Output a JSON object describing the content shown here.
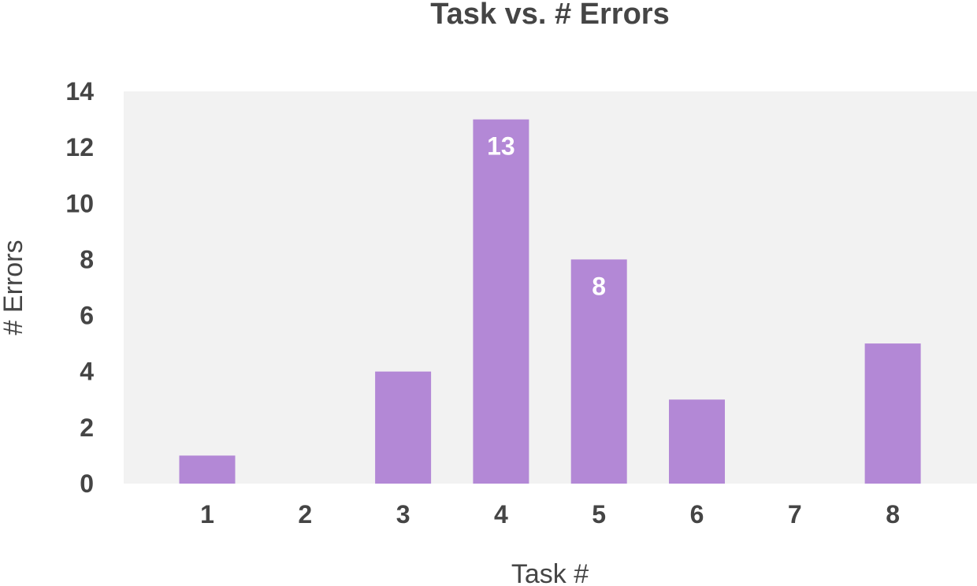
{
  "chart_data": {
    "type": "bar",
    "title": "Task vs. # Errors",
    "xlabel": "Task #",
    "ylabel": "# Errors",
    "categories": [
      "1",
      "2",
      "3",
      "4",
      "5",
      "6",
      "7",
      "8"
    ],
    "values": [
      1,
      0,
      4,
      13,
      8,
      3,
      0,
      5
    ],
    "ylim": [
      0,
      14
    ],
    "yticks": [
      "0",
      "2",
      "4",
      "6",
      "8",
      "10",
      "12",
      "14"
    ],
    "data_labels": [
      {
        "category": "4",
        "text": "13"
      },
      {
        "category": "5",
        "text": "8"
      }
    ],
    "grid": false,
    "legend": "none",
    "colors": {
      "bar": "#b388d6",
      "plot_background": "#f2f2f2",
      "text": "#454545",
      "data_label": "#ffffff"
    }
  }
}
